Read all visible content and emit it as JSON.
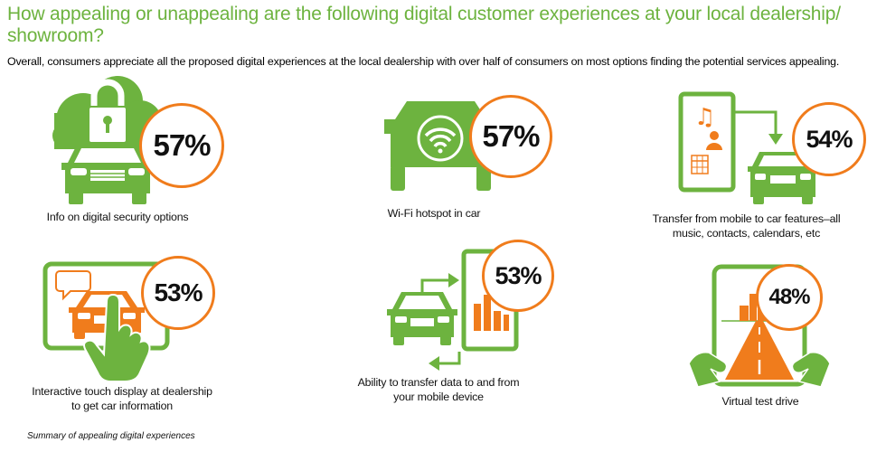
{
  "title": "How appealing or unappealing are the following digital customer experiences at your local dealership/ showroom?",
  "subtitle": "Overall, consumers appreciate all the proposed digital experiences at the local dealership with over half of consumers on most options finding the potential services appealing.",
  "colors": {
    "green": "#6db33f",
    "orange": "#f07c1c",
    "text": "#111111"
  },
  "items": [
    {
      "percent": "57%",
      "label": "Info on digital security options",
      "icon": "car-lock-cloud-icon"
    },
    {
      "percent": "57%",
      "label": "Wi-Fi hotspot in car",
      "icon": "car-wifi-icon"
    },
    {
      "percent": "54%",
      "label": "Transfer from mobile to car features–all music, contacts, calendars, etc",
      "icon": "mobile-to-car-icon"
    },
    {
      "percent": "53%",
      "label": "Interactive touch display at dealership to get car information",
      "icon": "touch-display-icon"
    },
    {
      "percent": "53%",
      "label": "Ability to transfer data to and from your mobile device",
      "icon": "car-mobile-transfer-icon"
    },
    {
      "percent": "48%",
      "label": "Virtual test drive",
      "icon": "virtual-road-icon"
    }
  ],
  "footnote": "Summary of appealing digital experiences"
}
